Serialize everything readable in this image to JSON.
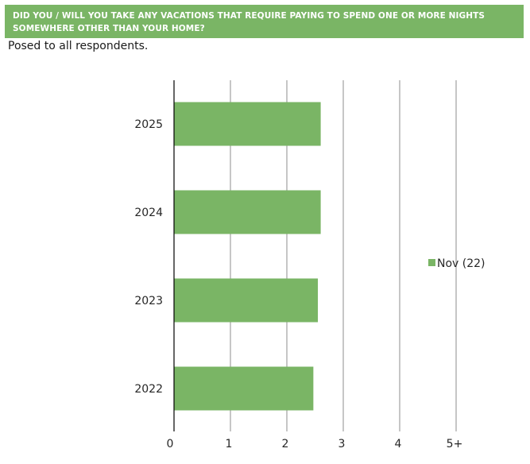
{
  "header": {
    "title": "DID YOU / WILL YOU TAKE ANY VACATIONS THAT REQUIRE PAYING TO SPEND ONE OR MORE NIGHTS SOMEWHERE OTHER THAN YOUR HOME?"
  },
  "subtitle": "Posed to all respondents.",
  "colors": {
    "bar": "#7ab565",
    "grid": "#8c8c8c",
    "axis": "#000000",
    "text": "#262626"
  },
  "chart_data": {
    "type": "bar",
    "orientation": "horizontal",
    "categories": [
      "2025",
      "2024",
      "2023",
      "2022"
    ],
    "series": [
      {
        "name": "Nov (22)",
        "values": [
          2.6,
          2.6,
          2.55,
          2.47
        ]
      }
    ],
    "x_ticks": [
      "0",
      "1",
      "2",
      "3",
      "4",
      "5+"
    ],
    "xlim": [
      0,
      5
    ],
    "grid": true,
    "legend_position": "right"
  }
}
